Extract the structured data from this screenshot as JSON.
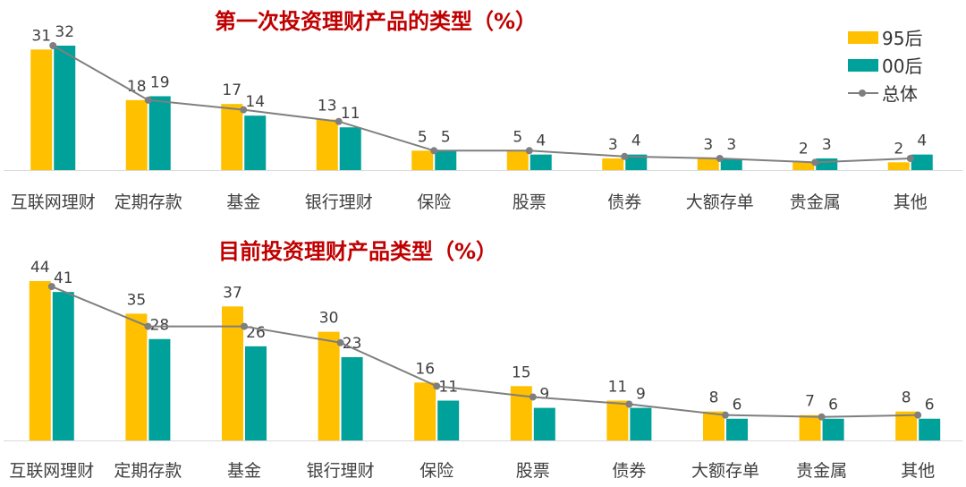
{
  "legend": {
    "s1": "95后",
    "s2": "00后",
    "s3": "总体"
  },
  "colors": {
    "s1": "#ffc000",
    "s2": "#00a19a",
    "line": "#7f7f7f",
    "title": "#c00000"
  },
  "chart_data": [
    {
      "type": "bar",
      "title": "第一次投资理财产品的类型（%）",
      "categories": [
        "互联网理财",
        "定期存款",
        "基金",
        "银行理财",
        "保险",
        "股票",
        "债券",
        "大额存单",
        "贵金属",
        "其他"
      ],
      "series": [
        {
          "name": "95后",
          "values": [
            31,
            18,
            17,
            13,
            5,
            5,
            3,
            3,
            2,
            2
          ]
        },
        {
          "name": "00后",
          "values": [
            32,
            19,
            14,
            11,
            5,
            4,
            4,
            3,
            3,
            4
          ]
        },
        {
          "name": "总体",
          "type": "line",
          "values": [
            32,
            18,
            15.5,
            12.5,
            5,
            5,
            3.5,
            3,
            2,
            3
          ]
        }
      ],
      "ylim": [
        0,
        32
      ]
    },
    {
      "type": "bar",
      "title": "目前投资理财产品类型（%）",
      "categories": [
        "互联网理财",
        "定期存款",
        "基金",
        "银行理财",
        "保险",
        "股票",
        "债券",
        "大额存单",
        "贵金属",
        "其他"
      ],
      "series": [
        {
          "name": "95后",
          "values": [
            44,
            35,
            37,
            30,
            16,
            15,
            11,
            8,
            7,
            8
          ]
        },
        {
          "name": "00后",
          "values": [
            41,
            28,
            26,
            23,
            11,
            9,
            9,
            6,
            6,
            6
          ]
        },
        {
          "name": "总体",
          "type": "line",
          "values": [
            42.5,
            31.5,
            31.5,
            27,
            15,
            12,
            10,
            7,
            6.5,
            7
          ]
        }
      ],
      "ylim": [
        0,
        44
      ]
    }
  ]
}
